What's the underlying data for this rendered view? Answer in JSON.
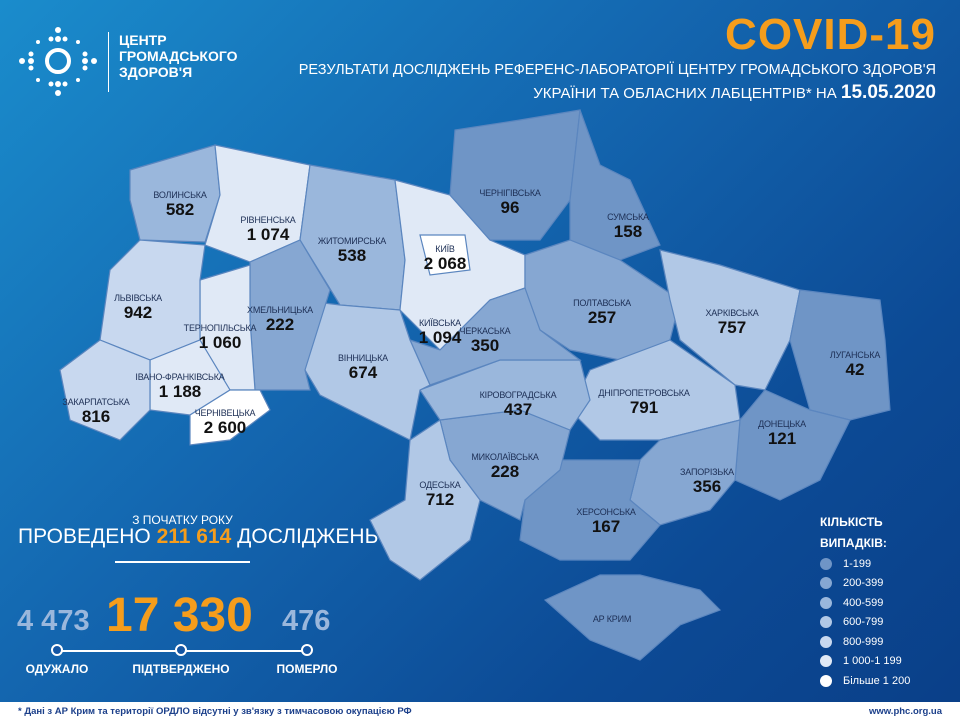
{
  "header": {
    "logo_lines": [
      "ЦЕНТР",
      "ГРОМАДСЬКОГО",
      "ЗДОРОВ'Я"
    ],
    "title": "COVID-19",
    "subtitle_1": "РЕЗУЛЬТАТИ ДОСЛІДЖЕНЬ РЕФЕРЕНС-ЛАБОРАТОРІЇ ЦЕНТРУ ГРОМАДСЬКОГО ЗДОРОВ'Я",
    "subtitle_2": "УКРАЇНИ ТА ОБЛАСНИХ ЛАБЦЕНТРІВ* НА",
    "date": "15.05.2020"
  },
  "stats": {
    "since_label": "З ПОЧАТКУ РОКУ",
    "tests_prefix": "ПРОВЕДЕНО",
    "tests_value": "211 614",
    "tests_suffix": "ДОСЛІДЖЕНЬ",
    "recovered": "4 473",
    "confirmed": "17 330",
    "deaths": "476",
    "recovered_label": "ОДУЖАЛО",
    "confirmed_label": "ПІДТВЕРДЖЕНО",
    "deaths_label": "ПОМЕРЛО"
  },
  "colors": {
    "accent": "#f59d1c",
    "bins": [
      "#6f95c6",
      "#86a7d2",
      "#9ab7dc",
      "#b1c8e6",
      "#c8d8ef",
      "#e0e9f6",
      "#ffffff"
    ]
  },
  "legend": {
    "title_1": "КІЛЬКІСТЬ",
    "title_2": "ВИПАДКІВ:",
    "items": [
      "1-199",
      "200-399",
      "400-599",
      "600-799",
      "800-999",
      "1 000-1 199",
      "Більше 1 200"
    ]
  },
  "regions": [
    {
      "name": "Волинська",
      "value": "582",
      "bin": 2
    },
    {
      "name": "Рівненська",
      "value": "1 074",
      "bin": 5
    },
    {
      "name": "Житомирська",
      "value": "538",
      "bin": 2
    },
    {
      "name": "Київська",
      "value": "1 094",
      "bin": 5
    },
    {
      "name": "Чернігівська",
      "value": "96",
      "bin": 0
    },
    {
      "name": "Сумська",
      "value": "158",
      "bin": 0
    },
    {
      "name": "Полтавська",
      "value": "257",
      "bin": 1
    },
    {
      "name": "Харківська",
      "value": "757",
      "bin": 3
    },
    {
      "name": "Луганська",
      "value": "42",
      "bin": 0
    },
    {
      "name": "Донецька",
      "value": "121",
      "bin": 0
    },
    {
      "name": "Дніпропетровська",
      "value": "791",
      "bin": 3
    },
    {
      "name": "Запорізька",
      "value": "356",
      "bin": 1
    },
    {
      "name": "Херсонська",
      "value": "167",
      "bin": 0
    },
    {
      "name": "АР Крим",
      "value": "",
      "bin": 0
    },
    {
      "name": "Миколаївська",
      "value": "228",
      "bin": 1
    },
    {
      "name": "Одеська",
      "value": "712",
      "bin": 3
    },
    {
      "name": "Кіровоградська",
      "value": "437",
      "bin": 2
    },
    {
      "name": "Черкаська",
      "value": "350",
      "bin": 1
    },
    {
      "name": "Вінницька",
      "value": "674",
      "bin": 3
    },
    {
      "name": "Хмельницька",
      "value": "222",
      "bin": 1
    },
    {
      "name": "Тернопільська",
      "value": "1 060",
      "bin": 5
    },
    {
      "name": "Львівська",
      "value": "942",
      "bin": 4
    },
    {
      "name": "Івано-Франківська",
      "value": "1 188",
      "bin": 5
    },
    {
      "name": "Закарпатська",
      "value": "816",
      "bin": 4
    },
    {
      "name": "Чернівецька",
      "value": "2 600",
      "bin": 6
    },
    {
      "name": "Київ",
      "value": "2 068",
      "bin": 6
    }
  ],
  "footer": {
    "note": "* Дані з АР Крим та території ОРДЛО відсутні у зв'язку з тимчасовою окупацією РФ",
    "site": "www.phc.org.ua"
  }
}
